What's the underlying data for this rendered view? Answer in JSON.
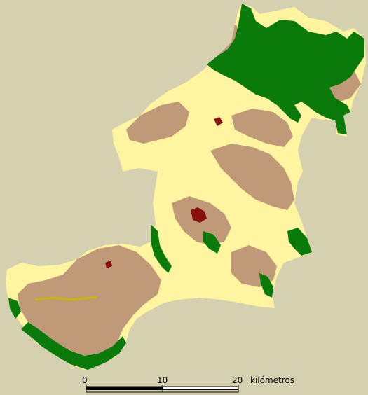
{
  "map": {
    "colors": {
      "background": "#d4d0b0",
      "crop_land": "#fff4a0",
      "shrub": "#c09a78",
      "forest": "#0a7a0a",
      "urban": "#8a1010",
      "water_line": "#c8b800"
    }
  },
  "scale_bar": {
    "tick_0": "0",
    "tick_10": "10",
    "tick_20": "20",
    "unit": "kilómetros"
  }
}
